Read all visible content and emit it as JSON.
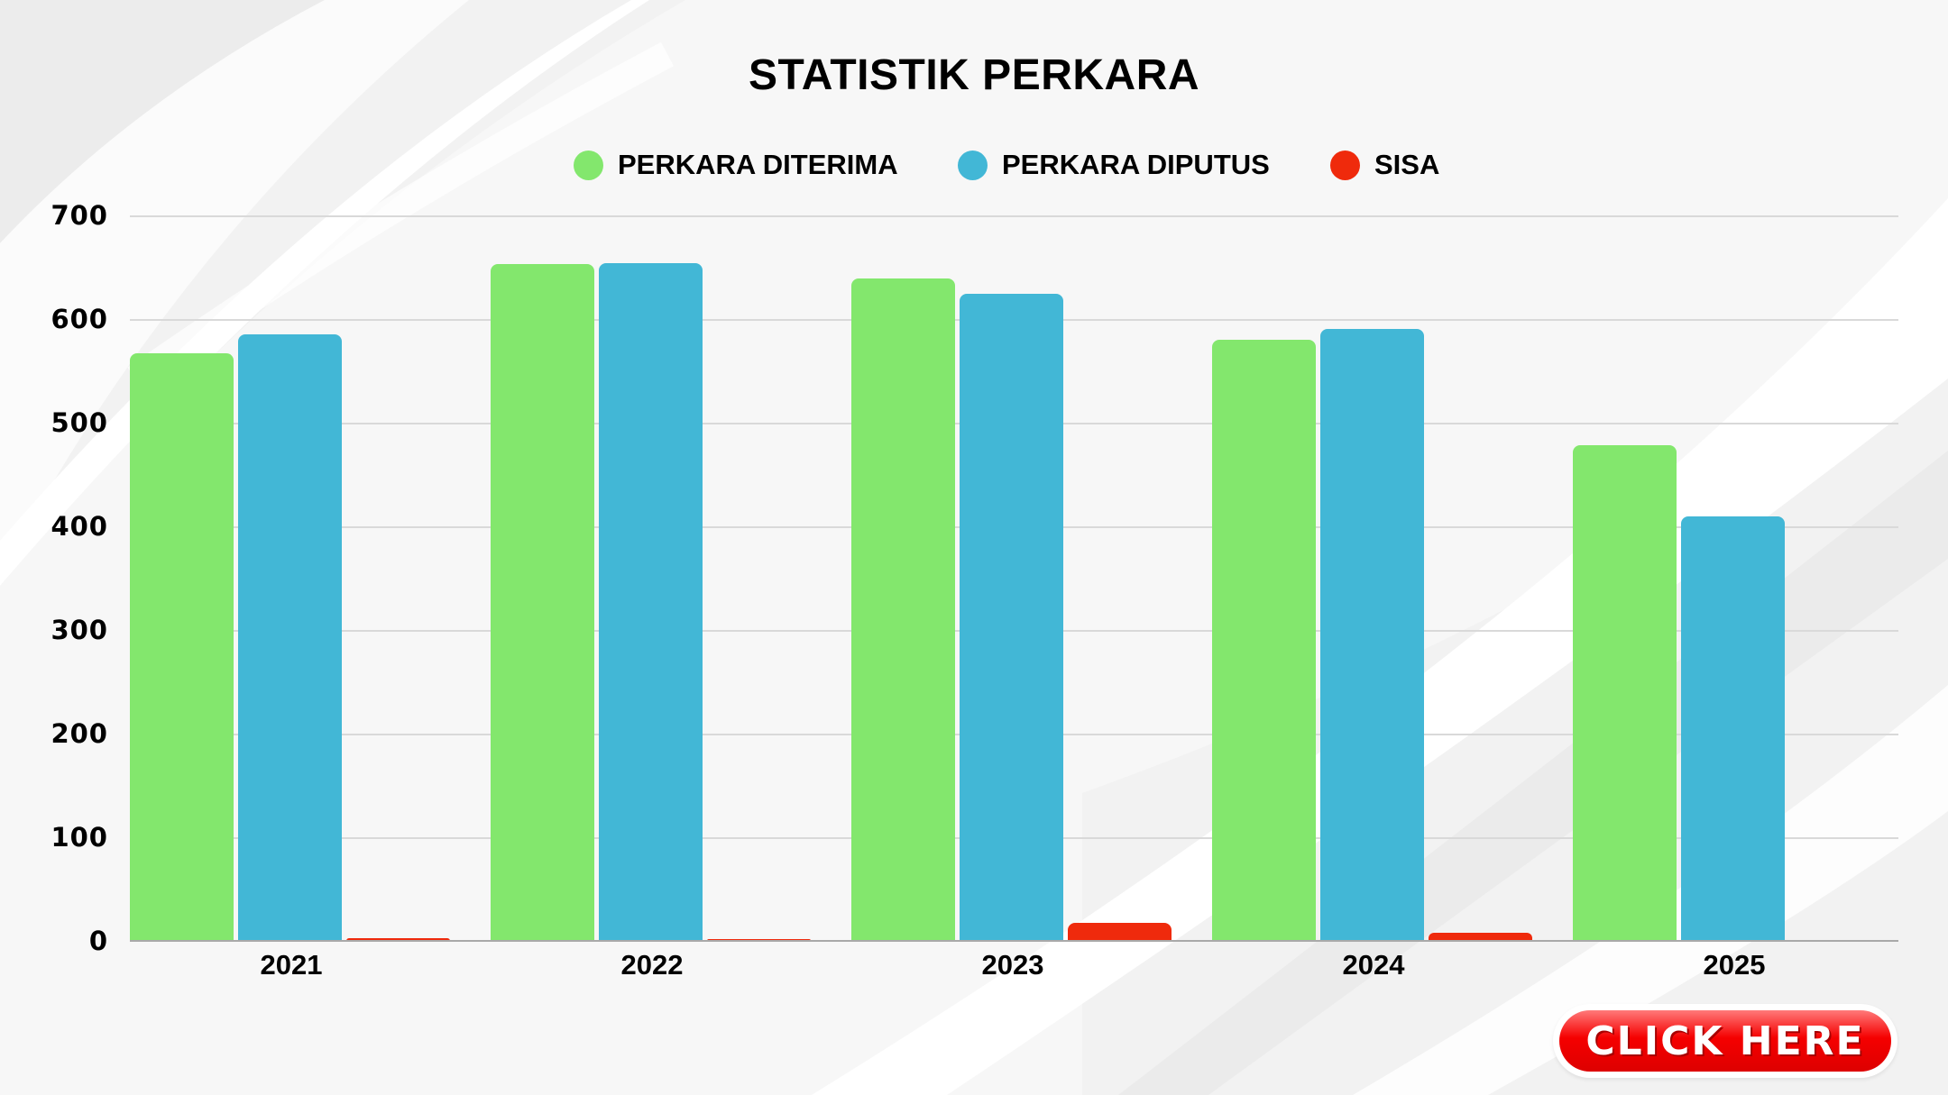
{
  "chart_data": {
    "type": "bar",
    "title": "STATISTIK PERKARA",
    "xlabel": "",
    "ylabel": "",
    "categories": [
      "2021",
      "2022",
      "2023",
      "2024",
      "2025"
    ],
    "series": [
      {
        "name": "PERKARA DITERIMA",
        "color": "#83e76d",
        "values": [
          568,
          654,
          640,
          581,
          479
        ]
      },
      {
        "name": "PERKARA DIPUTUS",
        "color": "#42b7d6",
        "values": [
          586,
          655,
          625,
          591,
          410
        ]
      },
      {
        "name": "SISA",
        "color": "#ef2a0c",
        "values": [
          3,
          2,
          17,
          8,
          0
        ]
      }
    ],
    "ylim": [
      0,
      700
    ],
    "yticks": [
      0,
      100,
      200,
      300,
      400,
      500,
      600,
      700
    ],
    "grid": true,
    "legend_position": "top"
  },
  "title": "STATISTIK PERKARA",
  "legend": [
    {
      "label": "PERKARA DITERIMA",
      "color": "#83e76d"
    },
    {
      "label": "PERKARA DIPUTUS",
      "color": "#42b7d6"
    },
    {
      "label": "SISA",
      "color": "#ef2a0c"
    }
  ],
  "yaxis": {
    "ticks": [
      "700",
      "600",
      "500",
      "400",
      "300",
      "200",
      "100",
      "0"
    ]
  },
  "xaxis": {
    "labels": [
      "2021",
      "2022",
      "2023",
      "2024",
      "2025"
    ]
  },
  "cta": {
    "label": "CLICK HERE"
  }
}
